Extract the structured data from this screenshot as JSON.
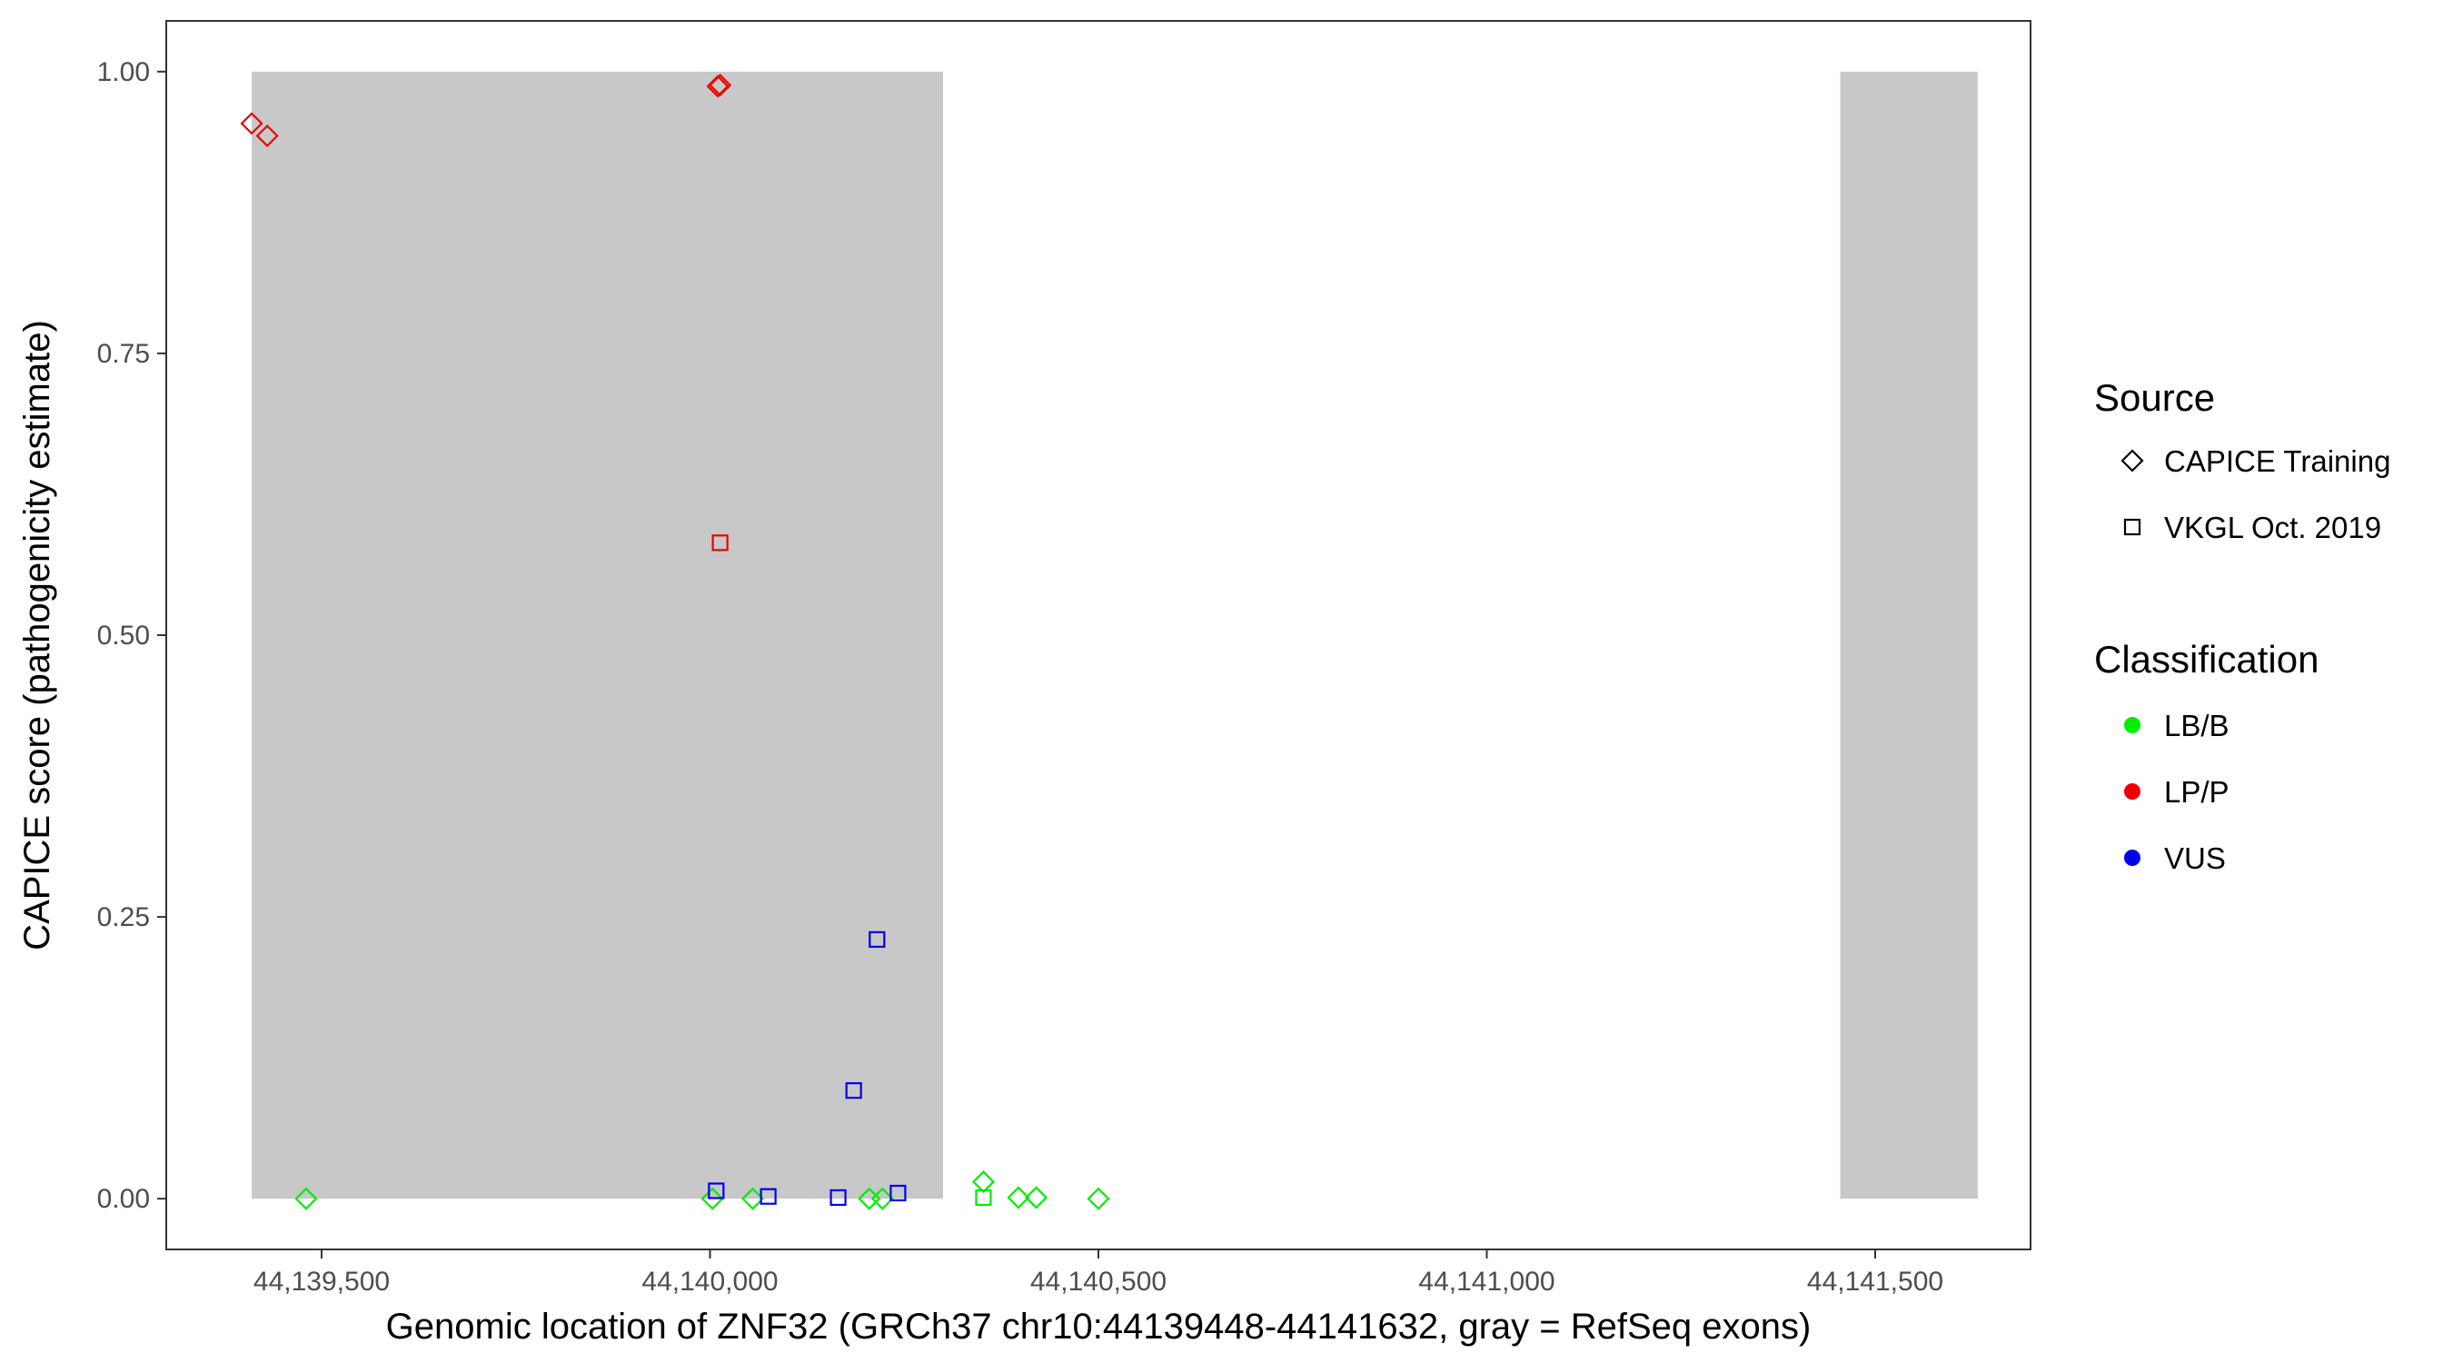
{
  "chart_data": {
    "type": "scatter",
    "title": "",
    "xlabel": "Genomic location of ZNF32 (GRCh37 chr10:44139448-44141632, gray = RefSeq exons)",
    "ylabel": "CAPICE score (pathogenicity estimate)",
    "xlim": [
      44139300,
      44141700
    ],
    "ylim": [
      -0.045,
      1.045
    ],
    "x_ticks": [
      44139500,
      44140000,
      44140500,
      44141000,
      44141500
    ],
    "x_tick_labels": [
      "44,139,500",
      "44,140,000",
      "44,140,500",
      "44,141,000",
      "44,141,500"
    ],
    "y_ticks": [
      0,
      0.25,
      0.5,
      0.75,
      1
    ],
    "y_tick_labels": [
      "0.00",
      "0.25",
      "0.50",
      "0.75",
      "1.00"
    ],
    "grid": false,
    "exon_color": "#c8c8c8",
    "exons": [
      {
        "start": 44139410,
        "end": 44140300
      },
      {
        "start": 44141455,
        "end": 44141632
      }
    ],
    "legend": {
      "placement": "right",
      "source": {
        "title": "Source",
        "items": [
          {
            "label": "CAPICE Training",
            "shape": "diamond"
          },
          {
            "label": "VKGL Oct. 2019",
            "shape": "square"
          }
        ]
      },
      "classification": {
        "title": "Classification",
        "items": [
          {
            "label": "LB/B",
            "color": "#00ee00"
          },
          {
            "label": "LP/P",
            "color": "#ee0000"
          },
          {
            "label": "VUS",
            "color": "#0000ee"
          }
        ]
      }
    },
    "points": [
      {
        "x": 44139410,
        "y": 0.954,
        "source": "CAPICE Training",
        "class": "LP/P"
      },
      {
        "x": 44139430,
        "y": 0.943,
        "source": "CAPICE Training",
        "class": "LP/P"
      },
      {
        "x": 44139480,
        "y": 0.0,
        "source": "CAPICE Training",
        "class": "LB/B"
      },
      {
        "x": 44140010,
        "y": 0.987,
        "source": "CAPICE Training",
        "class": "LP/P"
      },
      {
        "x": 44140013,
        "y": 0.988,
        "source": "CAPICE Training",
        "class": "LP/P"
      },
      {
        "x": 44140013,
        "y": 0.582,
        "source": "VKGL Oct. 2019",
        "class": "LP/P"
      },
      {
        "x": 44140003,
        "y": 0.0,
        "source": "CAPICE Training",
        "class": "LB/B"
      },
      {
        "x": 44140008,
        "y": 0.007,
        "source": "VKGL Oct. 2019",
        "class": "VUS"
      },
      {
        "x": 44140055,
        "y": 0.0,
        "source": "CAPICE Training",
        "class": "LB/B"
      },
      {
        "x": 44140075,
        "y": 0.002,
        "source": "VKGL Oct. 2019",
        "class": "VUS"
      },
      {
        "x": 44140165,
        "y": 0.001,
        "source": "VKGL Oct. 2019",
        "class": "VUS"
      },
      {
        "x": 44140185,
        "y": 0.096,
        "source": "VKGL Oct. 2019",
        "class": "VUS"
      },
      {
        "x": 44140205,
        "y": 0.0,
        "source": "CAPICE Training",
        "class": "LB/B"
      },
      {
        "x": 44140215,
        "y": 0.23,
        "source": "VKGL Oct. 2019",
        "class": "VUS"
      },
      {
        "x": 44140222,
        "y": 0.0,
        "source": "CAPICE Training",
        "class": "LB/B"
      },
      {
        "x": 44140242,
        "y": 0.005,
        "source": "VKGL Oct. 2019",
        "class": "VUS"
      },
      {
        "x": 44140352,
        "y": 0.015,
        "source": "CAPICE Training",
        "class": "LB/B"
      },
      {
        "x": 44140352,
        "y": 0.001,
        "source": "VKGL Oct. 2019",
        "class": "LB/B"
      },
      {
        "x": 44140397,
        "y": 0.001,
        "source": "CAPICE Training",
        "class": "LB/B"
      },
      {
        "x": 44140420,
        "y": 0.001,
        "source": "CAPICE Training",
        "class": "LB/B"
      },
      {
        "x": 44140500,
        "y": 0.0,
        "source": "CAPICE Training",
        "class": "LB/B"
      }
    ]
  }
}
